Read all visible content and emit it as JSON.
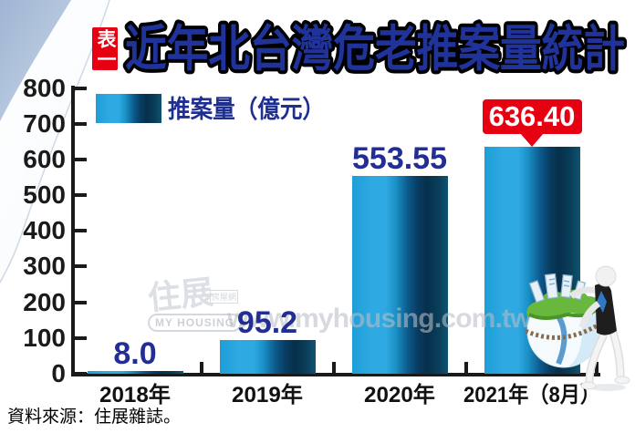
{
  "badge": {
    "label": "表一"
  },
  "title": {
    "text": "近年北台灣危老推案量統計"
  },
  "legend": {
    "label": "推案量（億元）"
  },
  "chart_data": {
    "type": "bar",
    "title": "近年北台灣危老推案量統計",
    "categories": [
      "2018年",
      "2019年",
      "2020年",
      "2021年（8月）"
    ],
    "values": [
      8.0,
      95.2,
      553.55,
      636.4
    ],
    "value_labels": [
      "8.0",
      "95.2",
      "553.55",
      "636.40"
    ],
    "series_name": "推案量（億元）",
    "ylim": [
      0,
      800
    ],
    "yticks": [
      0,
      100,
      200,
      300,
      400,
      500,
      600,
      700,
      800
    ],
    "grid": false,
    "legend_position": "top-left",
    "highlight": {
      "index": 3,
      "style": "red-callout",
      "color": "#E60012"
    },
    "colors": {
      "bar_light": "#2BAAE2",
      "bar_dark": "#083453",
      "value_label": "#232E95",
      "axis": "#1A1A1A",
      "title_fill": "#20339B",
      "title_outline": "#000000"
    }
  },
  "watermark": {
    "url": "www.myhousing.com.tw",
    "logo_main": "住展",
    "logo_sub": "房屋網",
    "logo_caption": "MY HOUSING"
  },
  "source": {
    "text": "資料來源：住展雜誌。"
  }
}
